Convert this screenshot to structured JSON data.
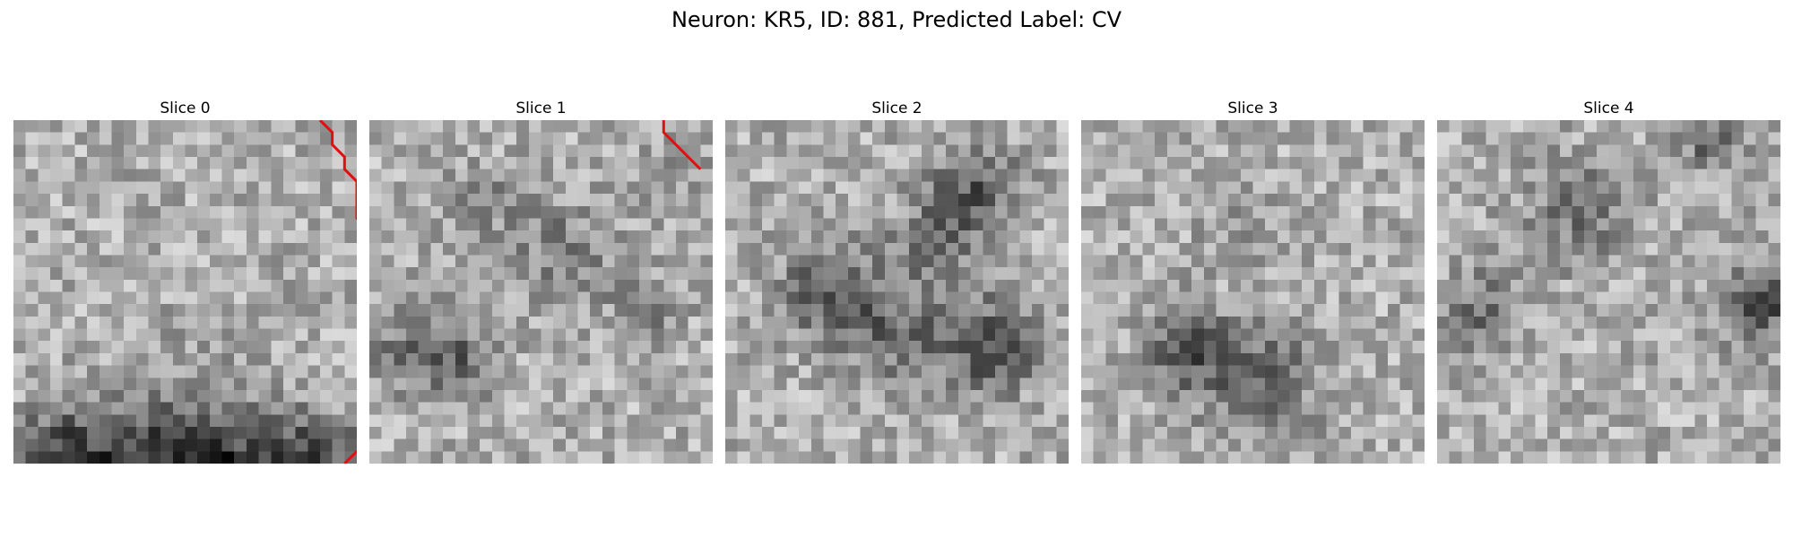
{
  "figure": {
    "title": "Neuron: KR5, ID: 881, Predicted Label: CV",
    "trace_color": "#e01010",
    "colormap": "gray",
    "grid_size": 28,
    "slices": [
      {
        "label": "Slice 0",
        "seed": 11,
        "trace": [
          [
            25,
            0
          ],
          [
            26,
            1
          ],
          [
            26,
            2
          ],
          [
            27,
            3
          ],
          [
            27,
            4
          ],
          [
            28,
            5
          ],
          [
            28,
            6
          ],
          [
            28,
            7
          ],
          [
            28,
            8
          ],
          [
            29,
            9
          ]
        ],
        "trace2": [
          [
            28,
            27
          ],
          [
            27,
            28
          ]
        ]
      },
      {
        "label": "Slice 1",
        "seed": 23,
        "trace": [
          [
            24,
            0
          ],
          [
            24,
            1
          ],
          [
            25,
            2
          ],
          [
            26,
            3
          ],
          [
            27,
            4
          ]
        ],
        "trace2": []
      },
      {
        "label": "Slice 2",
        "seed": 37,
        "trace": [],
        "trace2": []
      },
      {
        "label": "Slice 3",
        "seed": 53,
        "trace": [],
        "trace2": []
      },
      {
        "label": "Slice 4",
        "seed": 71,
        "trace": [],
        "trace2": []
      }
    ]
  }
}
